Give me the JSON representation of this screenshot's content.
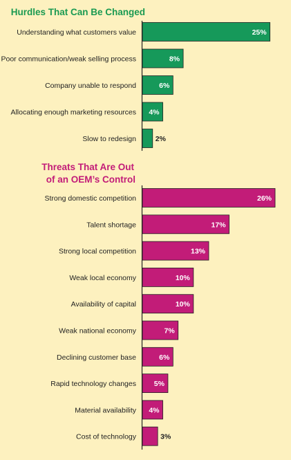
{
  "colors": {
    "background": "#fdf1bf",
    "green_bar": "#16995a",
    "magenta_bar": "#c21c78",
    "axis": "#222222",
    "green_title": "#1a9a52",
    "magenta_title": "#c21c78"
  },
  "chart_data": [
    {
      "type": "bar",
      "orientation": "horizontal",
      "title": "Hurdles That Can Be Changed",
      "color": "#16995a",
      "categories": [
        "Understanding what customers value",
        "Poor communication/weak selling process",
        "Company unable to respond",
        "Allocating enough marketing resources",
        "Slow to redesign"
      ],
      "values": [
        25,
        8,
        6,
        4,
        2
      ],
      "value_labels": [
        "25%",
        "8%",
        "6%",
        "4%",
        "2%"
      ],
      "xlim": [
        0,
        26
      ]
    },
    {
      "type": "bar",
      "orientation": "horizontal",
      "title_lines": [
        "Threats That Are Out",
        "of an OEM’s Control"
      ],
      "color": "#c21c78",
      "categories": [
        "Strong domestic competition",
        "Talent shortage",
        "Strong local competition",
        "Weak local economy",
        "Availability of capital",
        "Weak national economy",
        "Declining customer base",
        "Rapid technology changes",
        "Material availability",
        "Cost of technology"
      ],
      "values": [
        26,
        17,
        13,
        10,
        10,
        7,
        6,
        5,
        4,
        3
      ],
      "value_labels": [
        "26%",
        "17%",
        "13%",
        "10%",
        "10%",
        "7%",
        "6%",
        "5%",
        "4%",
        "3%"
      ],
      "xlim": [
        0,
        26
      ]
    }
  ]
}
